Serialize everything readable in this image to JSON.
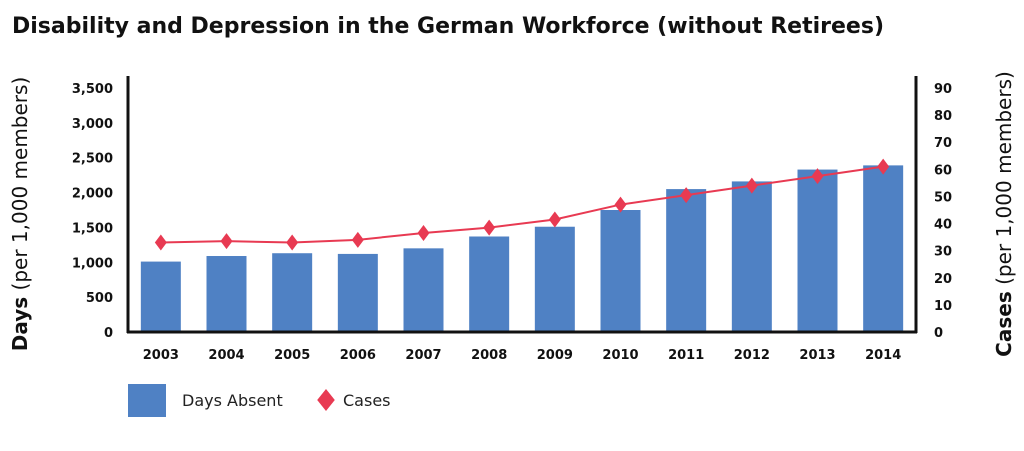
{
  "chart_data": {
    "type": "bar",
    "title": "Disability and Depression in the German Workforce (without Retirees)",
    "categories": [
      "2003",
      "2004",
      "2005",
      "2006",
      "2007",
      "2008",
      "2009",
      "2010",
      "2011",
      "2012",
      "2013",
      "2014"
    ],
    "series": [
      {
        "name": "Days Absent",
        "type": "bar",
        "axis": "left",
        "color": "#4f81c4",
        "values": [
          1010,
          1090,
          1130,
          1120,
          1200,
          1370,
          1510,
          1750,
          2050,
          2160,
          2330,
          2390
        ]
      },
      {
        "name": "Cases",
        "type": "line",
        "axis": "right",
        "color": "#e83a52",
        "marker": "diamond",
        "values": [
          33,
          33.5,
          33,
          34,
          36.5,
          38.5,
          41.5,
          47,
          50.5,
          54,
          57.5,
          61
        ]
      }
    ],
    "y_left": {
      "label_bold": "Days",
      "label_rest": " (per 1,000 members)",
      "ylim": [
        0,
        3500
      ],
      "ticks": [
        0,
        500,
        1000,
        1500,
        2000,
        2500,
        3000,
        3500
      ],
      "tick_labels": [
        "0",
        "500",
        "1,000",
        "1,500",
        "2,000",
        "2,500",
        "3,000",
        "3,500"
      ]
    },
    "y_right": {
      "label_bold": "Cases",
      "label_rest": " (per 1,000 members)",
      "ylim": [
        0,
        90
      ],
      "ticks": [
        0,
        10,
        20,
        30,
        40,
        50,
        60,
        70,
        80,
        90
      ],
      "tick_labels": [
        "0",
        "10",
        "20",
        "30",
        "40",
        "50",
        "60",
        "70",
        "80",
        "90"
      ]
    },
    "grid": false,
    "legend": {
      "position": "bottom-left",
      "items": [
        {
          "label": "Days Absent",
          "symbol": "square",
          "color": "#4f81c4"
        },
        {
          "label": "Cases",
          "symbol": "diamond",
          "color": "#e83a52"
        }
      ]
    }
  }
}
